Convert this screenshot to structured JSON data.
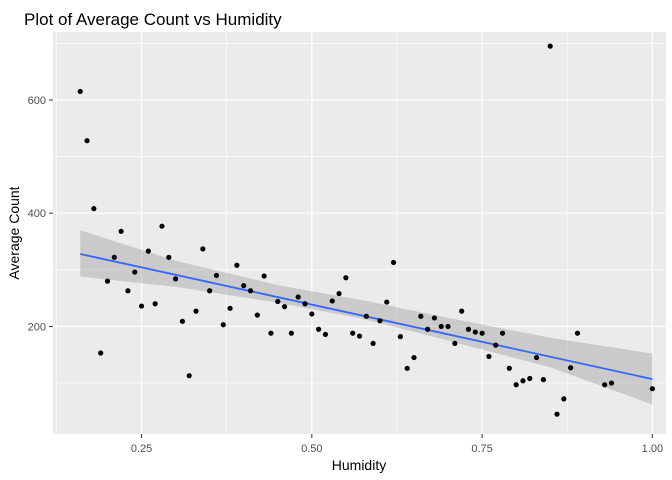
{
  "chart_data": {
    "type": "scatter",
    "title": "Plot of Average Count vs Humidity",
    "xlabel": "Humidity",
    "ylabel": "Average Count",
    "xlim": [
      0.12,
      1.02
    ],
    "ylim": [
      10,
      720
    ],
    "x_ticks": [
      0.25,
      0.5,
      0.75,
      1.0
    ],
    "x_tick_labels": [
      "0.25",
      "0.50",
      "0.75",
      "1.00"
    ],
    "y_ticks": [
      200,
      400,
      600
    ],
    "y_tick_labels": [
      "200",
      "400",
      "600"
    ],
    "grid": true,
    "legend": "none",
    "colors": {
      "panel_bg": "#ebebeb",
      "grid": "#ffffff",
      "points": "#000000",
      "trend_line": "#3366ff",
      "confidence_band": "#999999"
    },
    "points": [
      {
        "x": 0.16,
        "y": 615
      },
      {
        "x": 0.17,
        "y": 528
      },
      {
        "x": 0.18,
        "y": 408
      },
      {
        "x": 0.19,
        "y": 153
      },
      {
        "x": 0.2,
        "y": 280
      },
      {
        "x": 0.21,
        "y": 322
      },
      {
        "x": 0.22,
        "y": 368
      },
      {
        "x": 0.23,
        "y": 263
      },
      {
        "x": 0.24,
        "y": 296
      },
      {
        "x": 0.25,
        "y": 236
      },
      {
        "x": 0.26,
        "y": 333
      },
      {
        "x": 0.27,
        "y": 240
      },
      {
        "x": 0.28,
        "y": 377
      },
      {
        "x": 0.29,
        "y": 322
      },
      {
        "x": 0.3,
        "y": 284
      },
      {
        "x": 0.31,
        "y": 209
      },
      {
        "x": 0.32,
        "y": 113
      },
      {
        "x": 0.33,
        "y": 227
      },
      {
        "x": 0.34,
        "y": 337
      },
      {
        "x": 0.35,
        "y": 263
      },
      {
        "x": 0.36,
        "y": 290
      },
      {
        "x": 0.37,
        "y": 203
      },
      {
        "x": 0.38,
        "y": 232
      },
      {
        "x": 0.39,
        "y": 308
      },
      {
        "x": 0.4,
        "y": 272
      },
      {
        "x": 0.41,
        "y": 263
      },
      {
        "x": 0.42,
        "y": 220
      },
      {
        "x": 0.43,
        "y": 289
      },
      {
        "x": 0.44,
        "y": 188
      },
      {
        "x": 0.45,
        "y": 244
      },
      {
        "x": 0.46,
        "y": 235
      },
      {
        "x": 0.47,
        "y": 188
      },
      {
        "x": 0.48,
        "y": 252
      },
      {
        "x": 0.49,
        "y": 240
      },
      {
        "x": 0.5,
        "y": 222
      },
      {
        "x": 0.51,
        "y": 195
      },
      {
        "x": 0.52,
        "y": 186
      },
      {
        "x": 0.53,
        "y": 245
      },
      {
        "x": 0.54,
        "y": 258
      },
      {
        "x": 0.55,
        "y": 286
      },
      {
        "x": 0.56,
        "y": 188
      },
      {
        "x": 0.57,
        "y": 183
      },
      {
        "x": 0.58,
        "y": 218
      },
      {
        "x": 0.59,
        "y": 170
      },
      {
        "x": 0.6,
        "y": 210
      },
      {
        "x": 0.61,
        "y": 243
      },
      {
        "x": 0.62,
        "y": 313
      },
      {
        "x": 0.63,
        "y": 182
      },
      {
        "x": 0.64,
        "y": 126
      },
      {
        "x": 0.65,
        "y": 145
      },
      {
        "x": 0.66,
        "y": 218
      },
      {
        "x": 0.67,
        "y": 195
      },
      {
        "x": 0.68,
        "y": 215
      },
      {
        "x": 0.69,
        "y": 200
      },
      {
        "x": 0.7,
        "y": 200
      },
      {
        "x": 0.71,
        "y": 170
      },
      {
        "x": 0.72,
        "y": 227
      },
      {
        "x": 0.73,
        "y": 195
      },
      {
        "x": 0.74,
        "y": 190
      },
      {
        "x": 0.75,
        "y": 188
      },
      {
        "x": 0.76,
        "y": 147
      },
      {
        "x": 0.77,
        "y": 167
      },
      {
        "x": 0.78,
        "y": 188
      },
      {
        "x": 0.79,
        "y": 126
      },
      {
        "x": 0.8,
        "y": 97
      },
      {
        "x": 0.81,
        "y": 104
      },
      {
        "x": 0.82,
        "y": 108
      },
      {
        "x": 0.83,
        "y": 145
      },
      {
        "x": 0.84,
        "y": 106
      },
      {
        "x": 0.85,
        "y": 695
      },
      {
        "x": 0.86,
        "y": 45
      },
      {
        "x": 0.87,
        "y": 72
      },
      {
        "x": 0.88,
        "y": 127
      },
      {
        "x": 0.89,
        "y": 188
      },
      {
        "x": 0.93,
        "y": 97
      },
      {
        "x": 0.94,
        "y": 100
      },
      {
        "x": 1.0,
        "y": 90
      }
    ],
    "trend": {
      "method": "linear",
      "x": [
        0.16,
        1.0
      ],
      "y": [
        328,
        107
      ],
      "band_x": [
        0.16,
        0.3,
        0.45,
        0.58,
        0.7,
        0.85,
        1.0
      ],
      "band_lower": [
        288,
        270,
        242,
        212,
        175,
        128,
        62
      ],
      "band_upper": [
        370,
        316,
        273,
        245,
        215,
        180,
        152
      ]
    }
  }
}
